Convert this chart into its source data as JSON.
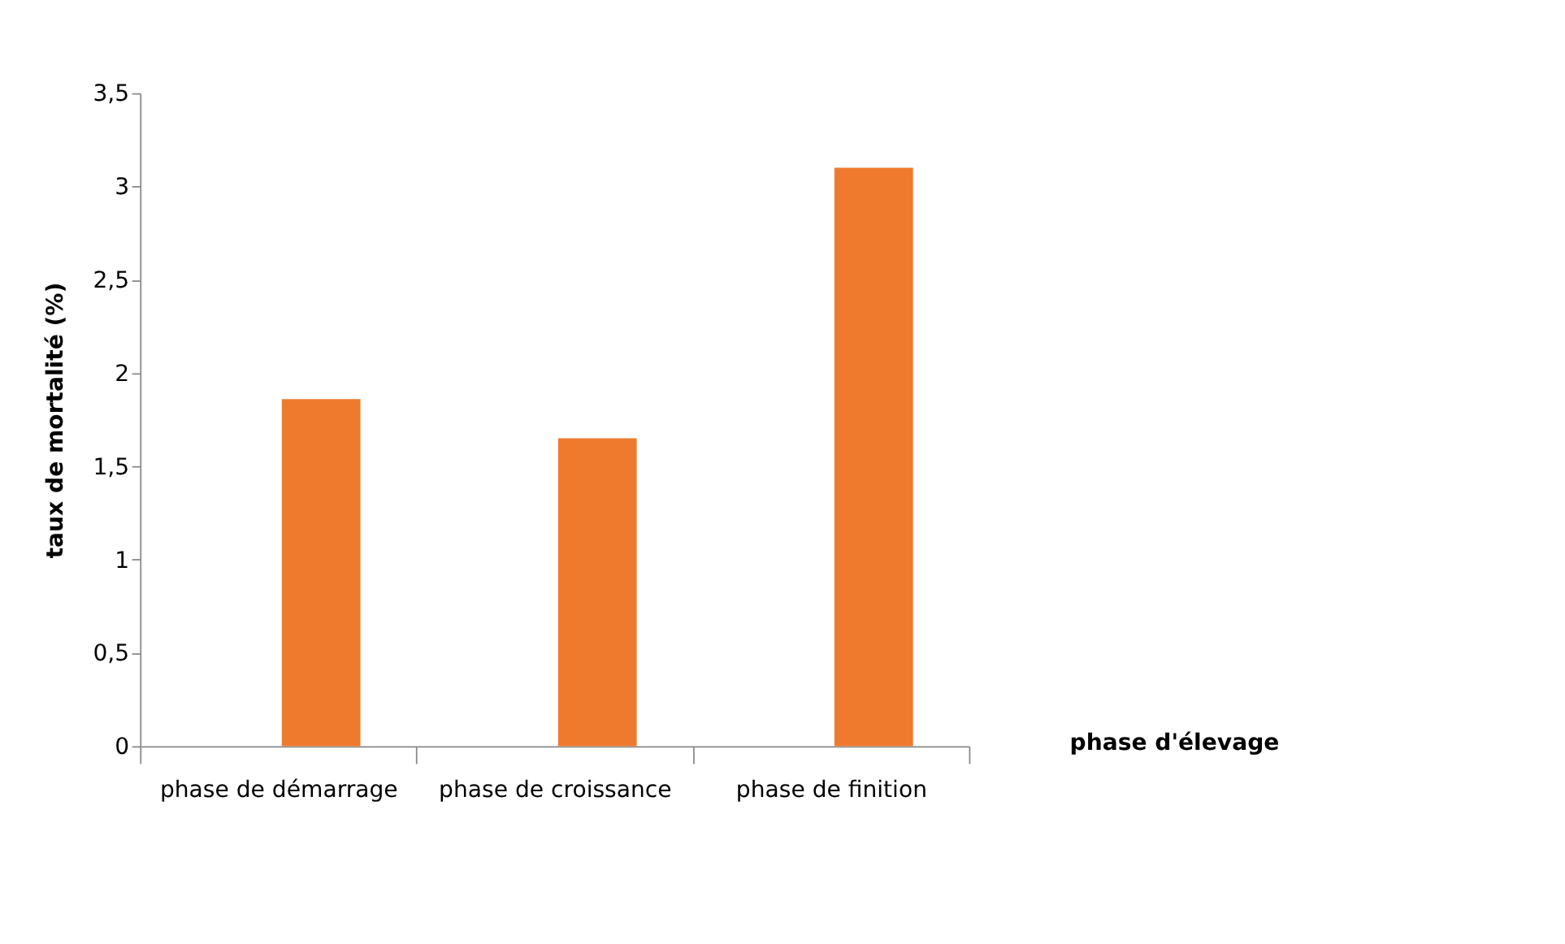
{
  "chart_data": {
    "type": "bar",
    "xlabel": "phase d'élevage",
    "ylabel": "taux de mortalité (%)",
    "categories": [
      "phase de démarrage",
      "phase de croissance",
      "phase de finition"
    ],
    "values": [
      1.86,
      1.65,
      3.1
    ],
    "color": "#ef7a2e",
    "ylim": [
      0,
      3.5
    ],
    "yticks": [
      {
        "value": 0,
        "label": "0"
      },
      {
        "value": 0.5,
        "label": "0,5"
      },
      {
        "value": 1,
        "label": "1"
      },
      {
        "value": 1.5,
        "label": "1,5"
      },
      {
        "value": 2,
        "label": "2"
      },
      {
        "value": 2.5,
        "label": "2,5"
      },
      {
        "value": 3,
        "label": "3"
      },
      {
        "value": 3.5,
        "label": "3,5"
      }
    ],
    "grid": false
  }
}
